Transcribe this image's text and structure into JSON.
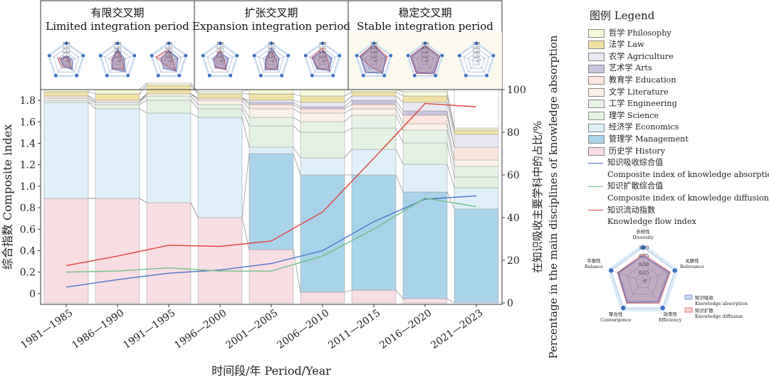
{
  "chart_data": {
    "type": "bar",
    "periods": [
      {
        "zh": "有限交叉期",
        "en": "Limited integration period",
        "span": [
          0,
          3
        ]
      },
      {
        "zh": "扩张交叉期",
        "en": "Expansion integration period",
        "span": [
          3,
          6
        ]
      },
      {
        "zh": "稳定交叉期",
        "en": "Stable integration period",
        "span": [
          6,
          9
        ]
      }
    ],
    "categories": [
      "1981—1985",
      "1986—1990",
      "1991—1995",
      "1996—2000",
      "2001—2005",
      "2006—2010",
      "2011—2015",
      "2016—2020",
      "2021—2023"
    ],
    "xlabel": "时间段/年 Period/Year",
    "ylabel_left": "综合指数 Composite index",
    "ylabel_right_zh": "在知识吸收主要学科中的占比/%",
    "ylabel_right_en": "Percentage in the main disciplines of knowledge absorption",
    "ylim_left": [
      -0.1,
      1.9
    ],
    "yticks_left": [
      "0",
      "0.2",
      "0.4",
      "0.6",
      "0.8",
      "1.0",
      "1.2",
      "1.4",
      "1.6",
      "1.8"
    ],
    "ylim_right": [
      0,
      100
    ],
    "yticks_right": [
      "0",
      "20",
      "40",
      "60",
      "80",
      "100"
    ],
    "stack_series": [
      {
        "key": "history",
        "color": "#f8dde3",
        "values": [
          49,
          49,
          47,
          40,
          25,
          5,
          6,
          2,
          0
        ]
      },
      {
        "key": "management",
        "color": "#a9d3ea",
        "values": [
          0,
          0,
          0,
          0,
          45,
          55,
          54,
          50,
          44
        ]
      },
      {
        "key": "economics",
        "color": "#dff0f8",
        "values": [
          45,
          42,
          42,
          47,
          3,
          8,
          12,
          13,
          10
        ]
      },
      {
        "key": "science",
        "color": "#e4f2e4",
        "values": [
          0,
          2,
          6,
          4,
          10,
          12,
          10,
          10,
          5
        ]
      },
      {
        "key": "engineering",
        "color": "#e8f3e8",
        "values": [
          1,
          1,
          2,
          2,
          4,
          5,
          6,
          6,
          5
        ]
      },
      {
        "key": "literature",
        "color": "#fbf3ea",
        "values": [
          1,
          0,
          1,
          2,
          4,
          4,
          3,
          3,
          3
        ]
      },
      {
        "key": "education",
        "color": "#fce6df",
        "values": [
          1,
          1,
          0,
          1,
          2,
          2,
          2,
          4,
          6
        ]
      },
      {
        "key": "arts",
        "color": "#c9c3dd",
        "values": [
          0,
          0,
          0,
          0,
          1,
          1,
          2,
          2,
          0
        ]
      },
      {
        "key": "agriculture",
        "color": "#e9e9f3",
        "values": [
          0,
          0,
          0,
          0,
          1,
          2,
          2,
          4,
          6
        ]
      },
      {
        "key": "law",
        "color": "#efe0a4",
        "values": [
          2,
          3,
          4,
          2,
          3,
          3,
          2,
          3,
          2
        ]
      },
      {
        "key": "philosophy",
        "color": "#f6f8d9",
        "values": [
          1,
          2,
          1,
          1,
          2,
          3,
          1,
          2,
          1
        ]
      }
    ],
    "line_series": [
      {
        "key": "absorption",
        "color": "#4a74c9",
        "values": [
          0.06,
          0.13,
          0.19,
          0.22,
          0.28,
          0.4,
          0.67,
          0.88,
          0.91
        ]
      },
      {
        "key": "diffusion",
        "color": "#6fbf86",
        "values": [
          0.2,
          0.21,
          0.24,
          0.21,
          0.21,
          0.35,
          0.6,
          0.89,
          0.81
        ]
      },
      {
        "key": "flow",
        "color": "#e0413a",
        "values": [
          0.26,
          0.35,
          0.45,
          0.44,
          0.49,
          0.76,
          1.26,
          1.77,
          1.74
        ]
      }
    ],
    "radar": {
      "axes": [
        "多样性",
        "关联性",
        "效率性",
        "聚合性",
        "平衡性"
      ],
      "axes_en": [
        "Diversity",
        "Relevance",
        "Efficiency",
        "Convergence",
        "Balance"
      ],
      "ticks": [
        "1.00",
        "0.75",
        "0.50",
        "0.25",
        "0"
      ],
      "legend": [
        {
          "zh": "知识吸收",
          "en": "Knowledge absorption",
          "color": "#6b8bd0"
        },
        {
          "zh": "知识扩散",
          "en": "Knowledge diffusion",
          "color": "#e05a5a"
        }
      ],
      "large": {
        "absorption": [
          0.75,
          0.82,
          0.78,
          0.8,
          0.78
        ],
        "diffusion": [
          0.8,
          0.85,
          0.82,
          0.82,
          0.8
        ]
      },
      "small": [
        {
          "absorption": [
            0.3,
            0.35,
            0.6,
            0.3,
            0.35
          ],
          "diffusion": [
            0.2,
            0.2,
            0.45,
            0.4,
            0.5
          ]
        },
        {
          "absorption": [
            0.7,
            0.4,
            0.75,
            0.55,
            0.3
          ],
          "diffusion": [
            0.55,
            0.3,
            0.6,
            0.5,
            0.35
          ]
        },
        {
          "absorption": [
            0.6,
            0.55,
            0.7,
            0.5,
            0.45
          ],
          "diffusion": [
            0.65,
            0.25,
            0.65,
            0.3,
            0.75
          ]
        },
        {
          "absorption": [
            0.5,
            0.5,
            0.55,
            0.4,
            0.4
          ],
          "diffusion": [
            0.65,
            0.25,
            0.6,
            0.45,
            0.35
          ]
        },
        {
          "absorption": [
            0.75,
            0.45,
            0.6,
            0.6,
            0.35
          ],
          "diffusion": [
            0.55,
            0.3,
            0.6,
            0.5,
            0.3
          ]
        },
        {
          "absorption": [
            0.6,
            0.55,
            0.65,
            0.55,
            0.6
          ],
          "diffusion": [
            0.75,
            0.3,
            0.7,
            0.45,
            0.65
          ]
        },
        {
          "absorption": [
            0.9,
            0.7,
            0.85,
            0.8,
            0.8
          ],
          "diffusion": [
            0.95,
            0.8,
            0.8,
            0.35,
            0.85
          ]
        },
        {
          "absorption": [
            0.85,
            0.85,
            0.85,
            0.8,
            0.85
          ],
          "diffusion": [
            0.9,
            0.88,
            0.88,
            0.85,
            0.88
          ]
        },
        {
          "absorption": [
            0,
            0,
            0,
            0,
            0
          ],
          "diffusion": [
            0,
            0,
            0,
            0,
            0
          ]
        }
      ]
    }
  },
  "legend": {
    "title": "图例 Legend",
    "stack_items": [
      {
        "label": "哲学 Philosophy",
        "color": "#f6f8d9"
      },
      {
        "label": "法学 Law",
        "color": "#efe0a4"
      },
      {
        "label": "农学 Agriculture",
        "color": "#e9e9f3"
      },
      {
        "label": "艺术学 Arts",
        "color": "#c9c3dd"
      },
      {
        "label": "教育学 Education",
        "color": "#fce6df"
      },
      {
        "label": "文学 Literature",
        "color": "#fbf3ea"
      },
      {
        "label": "工学 Engineering",
        "color": "#e8f3e8"
      },
      {
        "label": "理学 Science",
        "color": "#e4f2e4"
      },
      {
        "label": "经济学 Economics",
        "color": "#dff0f8"
      },
      {
        "label": "管理学 Management",
        "color": "#a9d3ea"
      },
      {
        "label": "历史学 History",
        "color": "#f8dde3"
      }
    ],
    "line_items": [
      {
        "zh": "知识吸收综合值",
        "en": "Composite index of knowledge absorption",
        "color": "#4a74c9"
      },
      {
        "zh": "知识扩散综合值",
        "en": "Composite index of knowledge diffusion",
        "color": "#6fbf86"
      },
      {
        "zh": "知识流动指数",
        "en": "Knowledge flow index",
        "color": "#e0413a"
      }
    ]
  }
}
